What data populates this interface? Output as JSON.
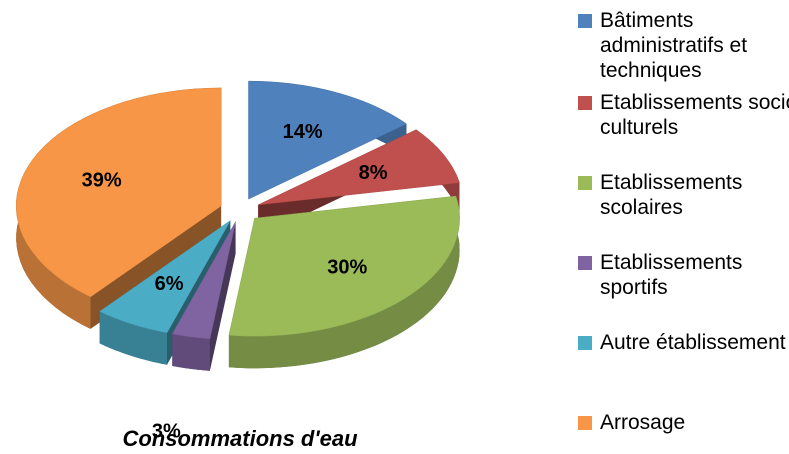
{
  "chart_data": {
    "type": "pie3d",
    "title": "Consommations d'eau",
    "categories": [
      "Bâtiments administratifs et techniques",
      "Etablissements socio-culturels",
      "Etablissements scolaires",
      "Etablissements sportifs",
      "Autre établissement",
      "Arrosage"
    ],
    "values": [
      14,
      8,
      30,
      3,
      6,
      39
    ],
    "value_labels": [
      "14%",
      "8%",
      "30%",
      "3%",
      "6%",
      "39%"
    ],
    "colors": [
      "#4f81bd",
      "#c0504d",
      "#9bbb59",
      "#8064a2",
      "#4bacc6",
      "#f79646"
    ],
    "legend": "right"
  }
}
